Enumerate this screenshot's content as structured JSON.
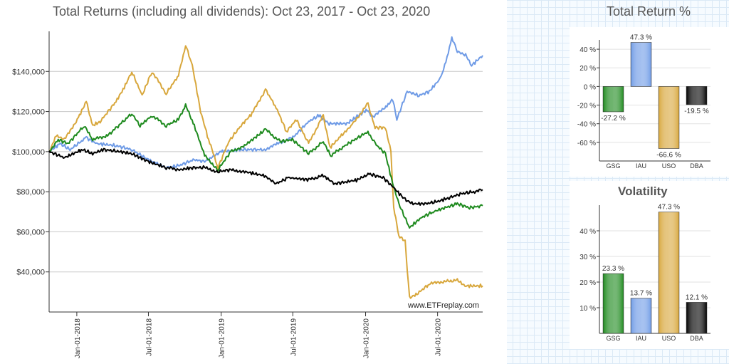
{
  "main_chart": {
    "title": "Total Returns (including all dividends): Oct 23, 2017 - Oct 23, 2020",
    "watermark": "www.ETFreplay.com"
  },
  "return_chart": {
    "title": "Total Return %"
  },
  "vol_chart": {
    "title": "Volatility"
  },
  "chart_data": [
    {
      "type": "line",
      "title": "Total Returns (including all dividends): Oct 23, 2017 - Oct 23, 2020",
      "x_range": [
        "2017-10-23",
        "2020-10-23"
      ],
      "ylim": [
        20000,
        160000
      ],
      "y_ticks": [
        40000,
        60000,
        80000,
        100000,
        120000,
        140000
      ],
      "y_tick_labels": [
        "$40,000",
        "$60,000",
        "$80,000",
        "$100,000",
        "$120,000",
        "$140,000"
      ],
      "x_tick_labels": [
        "Jan-01-2018",
        "Jul-01-2018",
        "Jan-01-2019",
        "Jul-01-2019",
        "Jan-01-2020",
        "Jul-01-2020"
      ],
      "x_tick_dates": [
        "2018-01-01",
        "2018-07-01",
        "2019-01-01",
        "2019-07-01",
        "2020-01-01",
        "2020-07-01"
      ],
      "grid": "horizontal",
      "series": [
        {
          "color": "#6f9be6",
          "points": [
            [
              "2017-10-23",
              100000
            ],
            [
              "2017-11-20",
              104000
            ],
            [
              "2017-12-15",
              101000
            ],
            [
              "2018-01-25",
              107000
            ],
            [
              "2018-02-20",
              104000
            ],
            [
              "2018-04-10",
              103000
            ],
            [
              "2018-05-20",
              101000
            ],
            [
              "2018-06-30",
              96000
            ],
            [
              "2018-08-15",
              92000
            ],
            [
              "2018-09-15",
              93000
            ],
            [
              "2018-10-25",
              96000
            ],
            [
              "2018-11-20",
              95000
            ],
            [
              "2019-01-01",
              100000
            ],
            [
              "2019-02-20",
              101000
            ],
            [
              "2019-04-20",
              101000
            ],
            [
              "2019-05-25",
              104000
            ],
            [
              "2019-07-01",
              107000
            ],
            [
              "2019-08-10",
              115000
            ],
            [
              "2019-09-05",
              118000
            ],
            [
              "2019-10-01",
              114000
            ],
            [
              "2019-11-15",
              114000
            ],
            [
              "2020-01-05",
              121000
            ],
            [
              "2020-01-20",
              117000
            ],
            [
              "2020-02-24",
              123000
            ],
            [
              "2020-03-10",
              126000
            ],
            [
              "2020-03-20",
              116000
            ],
            [
              "2020-04-15",
              130000
            ],
            [
              "2020-05-15",
              128000
            ],
            [
              "2020-06-10",
              130000
            ],
            [
              "2020-07-10",
              137000
            ],
            [
              "2020-07-25",
              147000
            ],
            [
              "2020-08-06",
              157000
            ],
            [
              "2020-08-20",
              150000
            ],
            [
              "2020-09-10",
              148000
            ],
            [
              "2020-09-25",
              143000
            ],
            [
              "2020-10-23",
              148000
            ]
          ]
        },
        {
          "color": "#d8a73c",
          "points": [
            [
              "2017-10-23",
              100000
            ],
            [
              "2017-11-10",
              108000
            ],
            [
              "2017-12-01",
              106000
            ],
            [
              "2018-01-05",
              117000
            ],
            [
              "2018-01-25",
              125000
            ],
            [
              "2018-02-10",
              113000
            ],
            [
              "2018-03-01",
              115000
            ],
            [
              "2018-04-10",
              125000
            ],
            [
              "2018-05-01",
              132000
            ],
            [
              "2018-05-20",
              140000
            ],
            [
              "2018-06-15",
              128000
            ],
            [
              "2018-07-10",
              140000
            ],
            [
              "2018-08-15",
              129000
            ],
            [
              "2018-09-15",
              138000
            ],
            [
              "2018-10-03",
              153000
            ],
            [
              "2018-10-20",
              143000
            ],
            [
              "2018-11-10",
              120000
            ],
            [
              "2018-11-30",
              106000
            ],
            [
              "2018-12-24",
              92000
            ],
            [
              "2019-01-20",
              105000
            ],
            [
              "2019-02-20",
              113000
            ],
            [
              "2019-03-20",
              119000
            ],
            [
              "2019-04-23",
              131000
            ],
            [
              "2019-05-20",
              122000
            ],
            [
              "2019-06-15",
              110000
            ],
            [
              "2019-07-10",
              116000
            ],
            [
              "2019-08-10",
              104000
            ],
            [
              "2019-09-16",
              118000
            ],
            [
              "2019-10-03",
              102000
            ],
            [
              "2019-11-01",
              108000
            ],
            [
              "2019-12-01",
              114000
            ],
            [
              "2020-01-07",
              124000
            ],
            [
              "2020-01-25",
              112000
            ],
            [
              "2020-02-20",
              112000
            ],
            [
              "2020-03-05",
              100000
            ],
            [
              "2020-03-12",
              72000
            ],
            [
              "2020-03-25",
              58000
            ],
            [
              "2020-04-10",
              55000
            ],
            [
              "2020-04-21",
              27000
            ],
            [
              "2020-05-10",
              29000
            ],
            [
              "2020-06-10",
              34000
            ],
            [
              "2020-07-15",
              35000
            ],
            [
              "2020-08-20",
              36000
            ],
            [
              "2020-09-08",
              33000
            ],
            [
              "2020-10-23",
              33000
            ]
          ]
        },
        {
          "color": "#1e8a1e",
          "points": [
            [
              "2017-10-23",
              100000
            ],
            [
              "2017-11-15",
              106000
            ],
            [
              "2017-12-10",
              104000
            ],
            [
              "2018-01-20",
              113000
            ],
            [
              "2018-02-10",
              106000
            ],
            [
              "2018-03-20",
              108000
            ],
            [
              "2018-05-20",
              119000
            ],
            [
              "2018-06-10",
              113000
            ],
            [
              "2018-07-10",
              118000
            ],
            [
              "2018-08-15",
              113000
            ],
            [
              "2018-09-15",
              116000
            ],
            [
              "2018-10-03",
              123000
            ],
            [
              "2018-10-25",
              113000
            ],
            [
              "2018-11-20",
              98000
            ],
            [
              "2018-12-24",
              91000
            ],
            [
              "2019-01-25",
              100000
            ],
            [
              "2019-03-01",
              103000
            ],
            [
              "2019-04-23",
              111000
            ],
            [
              "2019-05-30",
              105000
            ],
            [
              "2019-06-30",
              106000
            ],
            [
              "2019-08-10",
              99000
            ],
            [
              "2019-09-16",
              105000
            ],
            [
              "2019-10-05",
              98000
            ],
            [
              "2019-11-10",
              103000
            ],
            [
              "2020-01-07",
              110000
            ],
            [
              "2020-01-25",
              104000
            ],
            [
              "2020-02-20",
              99000
            ],
            [
              "2020-03-12",
              82000
            ],
            [
              "2020-03-25",
              74000
            ],
            [
              "2020-04-21",
              62000
            ],
            [
              "2020-05-20",
              67000
            ],
            [
              "2020-06-20",
              70000
            ],
            [
              "2020-07-20",
              72000
            ],
            [
              "2020-08-20",
              74000
            ],
            [
              "2020-09-20",
              72000
            ],
            [
              "2020-10-23",
              73000
            ]
          ]
        },
        {
          "color": "#000000",
          "points": [
            [
              "2017-10-23",
              100000
            ],
            [
              "2017-12-01",
              97000
            ],
            [
              "2018-01-15",
              101000
            ],
            [
              "2018-02-10",
              99000
            ],
            [
              "2018-03-10",
              101000
            ],
            [
              "2018-04-20",
              100000
            ],
            [
              "2018-05-20",
              99000
            ],
            [
              "2018-07-01",
              95000
            ],
            [
              "2018-08-15",
              92000
            ],
            [
              "2018-09-20",
              91000
            ],
            [
              "2018-10-20",
              92000
            ],
            [
              "2018-11-20",
              92000
            ],
            [
              "2018-12-24",
              90000
            ],
            [
              "2019-01-25",
              91000
            ],
            [
              "2019-03-01",
              90000
            ],
            [
              "2019-04-20",
              88000
            ],
            [
              "2019-05-20",
              84000
            ],
            [
              "2019-06-20",
              87000
            ],
            [
              "2019-08-10",
              86000
            ],
            [
              "2019-09-16",
              88000
            ],
            [
              "2019-10-15",
              84000
            ],
            [
              "2019-11-15",
              85000
            ],
            [
              "2019-12-15",
              86000
            ],
            [
              "2020-01-07",
              89000
            ],
            [
              "2020-02-15",
              87000
            ],
            [
              "2020-03-12",
              82000
            ],
            [
              "2020-04-10",
              76000
            ],
            [
              "2020-04-30",
              74000
            ],
            [
              "2020-05-30",
              74000
            ],
            [
              "2020-06-30",
              75000
            ],
            [
              "2020-07-30",
              77000
            ],
            [
              "2020-08-30",
              79000
            ],
            [
              "2020-09-30",
              80000
            ],
            [
              "2020-10-23",
              81000
            ]
          ]
        }
      ]
    },
    {
      "type": "bar",
      "title": "Total Return %",
      "categories": [
        "GSG",
        "IAU",
        "USO",
        "DBA"
      ],
      "values": [
        -27.2,
        47.3,
        -66.6,
        -19.5
      ],
      "value_labels": [
        "-27.2 %",
        "47.3 %",
        "-66.6 %",
        "-19.5 %"
      ],
      "colors": [
        "#1e8a1e",
        "#6f9be6",
        "#d8a73c",
        "#000000"
      ],
      "ylim": [
        -80,
        50
      ],
      "y_ticks": [
        -60,
        -40,
        -20,
        0,
        20,
        40
      ],
      "y_tick_labels": [
        "-60 %",
        "-40 %",
        "-20 %",
        "0 %",
        "20 %",
        "40 %"
      ]
    },
    {
      "type": "bar",
      "title": "Volatility",
      "categories": [
        "GSG",
        "IAU",
        "USO",
        "DBA"
      ],
      "values": [
        23.3,
        13.7,
        47.3,
        12.1
      ],
      "value_labels": [
        "23.3 %",
        "13.7 %",
        "47.3 %",
        "12.1 %"
      ],
      "colors": [
        "#1e8a1e",
        "#6f9be6",
        "#d8a73c",
        "#000000"
      ],
      "ylim": [
        0,
        50
      ],
      "y_ticks": [
        10,
        20,
        30,
        40
      ],
      "y_tick_labels": [
        "10 %",
        "20 %",
        "30 %",
        "40 %"
      ]
    }
  ]
}
